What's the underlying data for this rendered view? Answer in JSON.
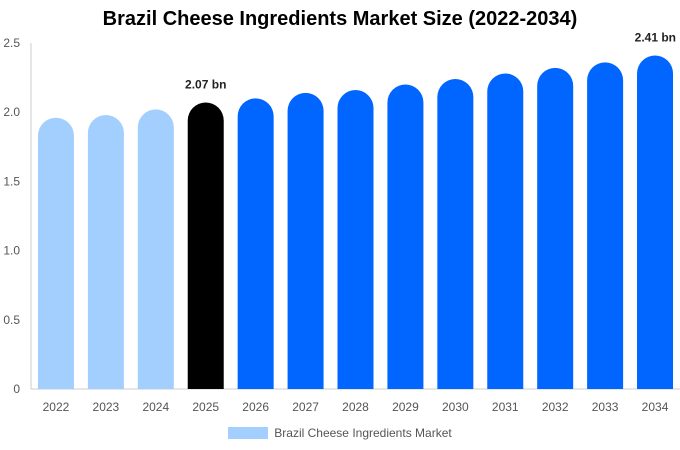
{
  "chart_data": {
    "type": "bar",
    "title": "Brazil Cheese Ingredients Market Size (2022-2034)",
    "xlabel": "",
    "ylabel": "",
    "categories": [
      "2022",
      "2023",
      "2024",
      "2025",
      "2026",
      "2027",
      "2028",
      "2029",
      "2030",
      "2031",
      "2032",
      "2033",
      "2034"
    ],
    "series": [
      {
        "name": "Brazil Cheese Ingredients Market",
        "values": [
          1.96,
          1.98,
          2.02,
          2.07,
          2.1,
          2.14,
          2.16,
          2.2,
          2.24,
          2.28,
          2.32,
          2.36,
          2.41
        ]
      }
    ],
    "ylim": [
      0,
      2.5
    ],
    "yticks": [
      "0",
      "0.5",
      "1.0",
      "1.5",
      "2.0",
      "2.5"
    ],
    "data_labels": [
      {
        "category": "2025",
        "text": "2.07 bn"
      },
      {
        "category": "2034",
        "text": "2.41 bn"
      }
    ],
    "colors": {
      "historical": "#a3cfff",
      "current": "#000000",
      "forecast": "#0066ff",
      "legend_swatch": "#a3cfff"
    },
    "bar_groups": [
      "historical",
      "historical",
      "historical",
      "current",
      "forecast",
      "forecast",
      "forecast",
      "forecast",
      "forecast",
      "forecast",
      "forecast",
      "forecast",
      "forecast"
    ],
    "grid": false,
    "legend": "bottom-center"
  }
}
